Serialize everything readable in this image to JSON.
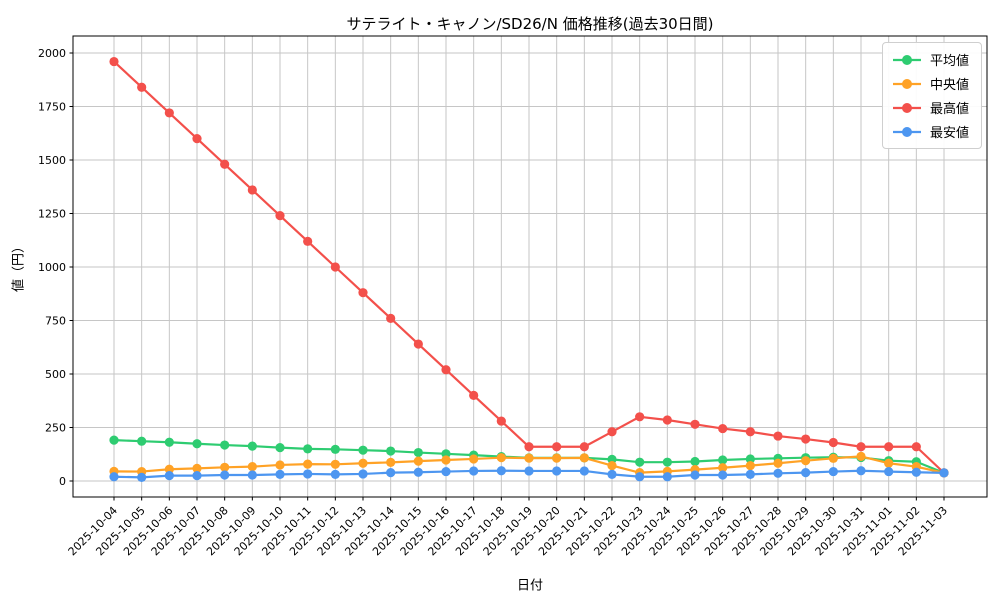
{
  "chart_data": {
    "type": "line",
    "title": "サテライト・キャノン/SD26/N 価格推移(過去30日間)",
    "xlabel": "日付",
    "ylabel": "値（円）",
    "grid": true,
    "legend_position": "upper right",
    "ylim": [
      -75,
      2080
    ],
    "yticks": [
      0,
      250,
      500,
      750,
      1000,
      1250,
      1500,
      1750,
      2000
    ],
    "x": [
      "2025-10-04",
      "2025-10-05",
      "2025-10-06",
      "2025-10-07",
      "2025-10-08",
      "2025-10-09",
      "2025-10-10",
      "2025-10-11",
      "2025-10-12",
      "2025-10-13",
      "2025-10-14",
      "2025-10-15",
      "2025-10-16",
      "2025-10-17",
      "2025-10-18",
      "2025-10-19",
      "2025-10-20",
      "2025-10-21",
      "2025-10-22",
      "2025-10-23",
      "2025-10-24",
      "2025-10-25",
      "2025-10-26",
      "2025-10-27",
      "2025-10-28",
      "2025-10-29",
      "2025-10-30",
      "2025-10-31",
      "2025-11-01",
      "2025-11-02",
      "2025-11-03"
    ],
    "series": [
      {
        "name": "平均値",
        "key": "mean",
        "color": "#2ecc71",
        "values": [
          191,
          186,
          181,
          174,
          168,
          163,
          156,
          150,
          148,
          144,
          140,
          133,
          127,
          121,
          114,
          108,
          108,
          108,
          101,
          88,
          88,
          91,
          98,
          103,
          106,
          109,
          111,
          110,
          95,
          90,
          38
        ]
      },
      {
        "name": "中央値",
        "key": "median",
        "color": "#ffa226",
        "values": [
          45,
          44,
          55,
          59,
          64,
          67,
          75,
          79,
          78,
          83,
          87,
          93,
          98,
          103,
          109,
          107,
          107,
          108,
          72,
          39,
          45,
          53,
          62,
          72,
          83,
          95,
          106,
          115,
          83,
          67,
          38
        ]
      },
      {
        "name": "最高値",
        "key": "max",
        "color": "#f3504b",
        "values": [
          1960,
          1840,
          1720,
          1600,
          1480,
          1360,
          1240,
          1120,
          1000,
          880,
          760,
          640,
          520,
          400,
          280,
          160,
          160,
          160,
          230,
          300,
          285,
          265,
          245,
          230,
          210,
          196,
          180,
          160,
          160,
          160,
          38
        ]
      },
      {
        "name": "最安値",
        "key": "min",
        "color": "#4d96f0",
        "values": [
          20,
          17,
          25,
          25,
          28,
          28,
          31,
          33,
          31,
          33,
          39,
          41,
          44,
          47,
          48,
          47,
          47,
          47,
          31,
          20,
          20,
          28,
          28,
          31,
          36,
          39,
          44,
          48,
          44,
          41,
          38
        ]
      }
    ]
  }
}
